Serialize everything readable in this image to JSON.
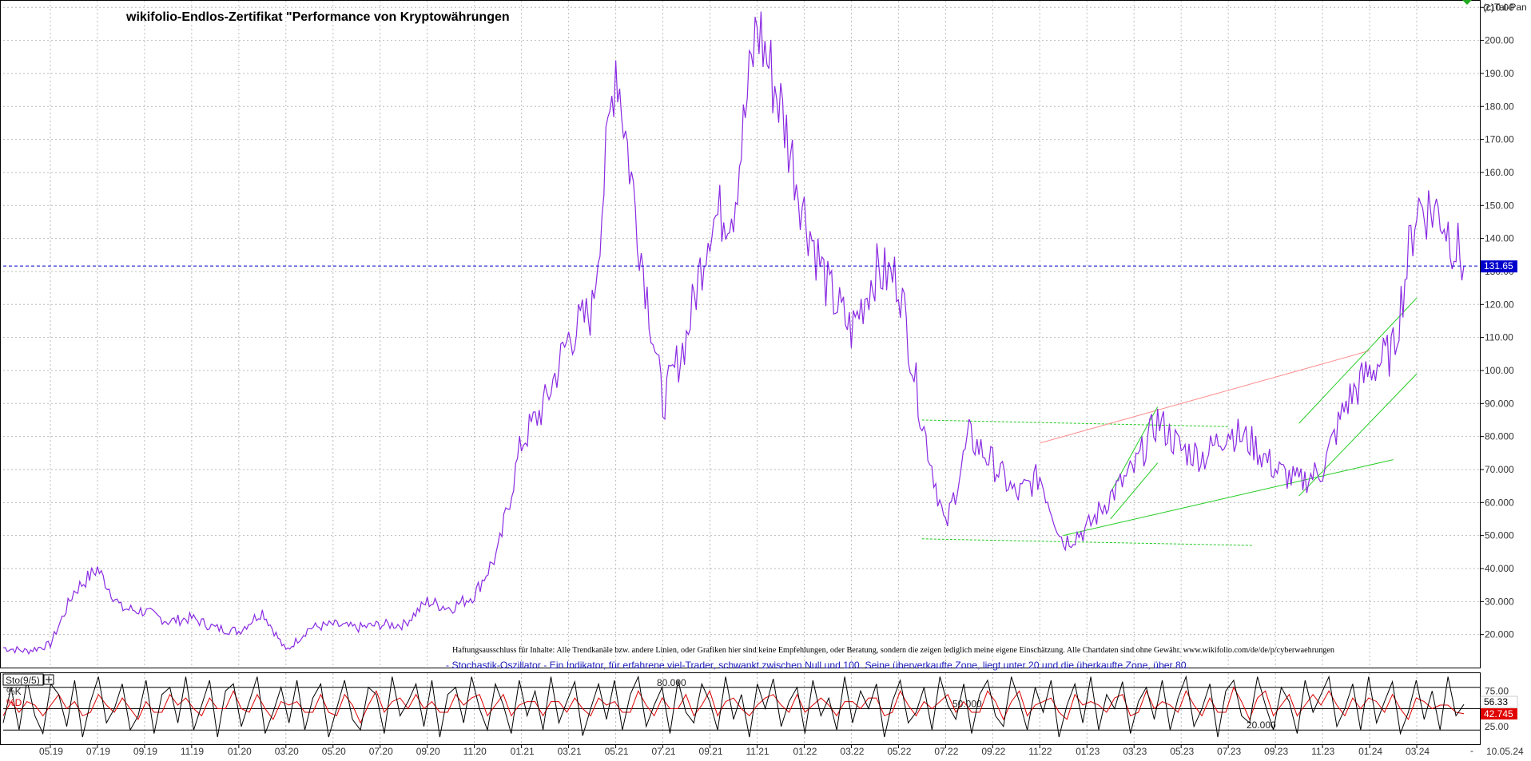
{
  "header": {
    "title": "wikifolio-Endlos-Zertifikat \"Performance von Kryptowährungen",
    "copyright": "(c)Tai-Pan"
  },
  "disclaimer": "Haftungsausschluss für Inhalte: Alle Trendkanäle bzw. andere Linien, oder Grafiken hier sind keine Empfehlungen, oder Beratung, sondern die zeigen lediglich meine eigene Einschätzung. Alle Chartdaten sind ohne Gewähr. www.wikifolio.com/de/de/p/cyberwaehrungen",
  "oscillator_description": "- Stochastik-Oszillator - Ein Indikator, für erfahrene viel-Trader, schwankt zwischen Null und 100. Seine überverkaufte Zone, liegt unter 20 und die überkaufte Zone, über 80.",
  "colors": {
    "price": "#8a2be2",
    "current_line": "#0000cc",
    "trend_green": "#22cc22",
    "trend_red": "#ff9090",
    "k_line": "#000000",
    "d_line": "#dd0000",
    "grid": "#bbbbbb",
    "price_label_bg": "#0000cc",
    "d_label_bg": "#e00000"
  },
  "chart_data": [
    {
      "type": "line",
      "title": "wikifolio-Endlos-Zertifikat \"Performance von Kryptowährungen",
      "ylim": [
        10,
        212
      ],
      "y_ticks": [
        "20.000",
        "30.000",
        "40.000",
        "50.000",
        "60.000",
        "70.000",
        "80.000",
        "90.000",
        "100.00",
        "110.00",
        "120.00",
        "130.00",
        "140.00",
        "150.00",
        "160.00",
        "170.00",
        "180.00",
        "190.00",
        "200.00",
        "210.00"
      ],
      "y_tick_values": [
        20,
        30,
        40,
        50,
        60,
        70,
        80,
        90,
        100,
        110,
        120,
        130,
        140,
        150,
        160,
        170,
        180,
        190,
        200,
        210
      ],
      "x_ticks": [
        "05.19",
        "07.19",
        "09.19",
        "11.19",
        "01.20",
        "03.20",
        "05.20",
        "07.20",
        "09.20",
        "11.20",
        "01.21",
        "03.21",
        "05.21",
        "07.21",
        "09.21",
        "11.21",
        "01.22",
        "03.22",
        "05.22",
        "07.22",
        "09.22",
        "11.22",
        "01.23",
        "03.23",
        "05.23",
        "07.23",
        "09.23",
        "11.23",
        "01.24",
        "03.24"
      ],
      "x_last_label": "10.05.24",
      "current_value": 131.65,
      "current_label": "131.65",
      "grid": true,
      "series": [
        {
          "x": [
            "2019-03",
            "2019-04",
            "2019-05",
            "2019-06",
            "2019-07",
            "2019-08",
            "2019-09",
            "2019-10",
            "2019-11",
            "2019-12",
            "2020-01",
            "2020-02",
            "2020-03",
            "2020-04",
            "2020-05",
            "2020-06",
            "2020-07",
            "2020-08",
            "2020-09",
            "2020-10",
            "2020-11",
            "2020-12",
            "2021-01",
            "2021-02",
            "2021-03",
            "2021-04",
            "2021-05",
            "2021-06",
            "2021-07",
            "2021-08",
            "2021-09",
            "2021-10",
            "2021-11",
            "2021-12",
            "2022-01",
            "2022-02",
            "2022-03",
            "2022-04",
            "2022-05",
            "2022-06",
            "2022-07",
            "2022-08",
            "2022-09",
            "2022-10",
            "2022-11",
            "2022-12",
            "2023-01",
            "2023-02",
            "2023-03",
            "2023-04",
            "2023-05",
            "2023-06",
            "2023-07",
            "2023-08",
            "2023-09",
            "2023-10",
            "2023-11",
            "2023-12",
            "2024-01",
            "2024-02",
            "2024-03",
            "2024-04",
            "2024-05"
          ],
          "values": [
            16,
            15,
            17,
            33,
            40,
            28,
            27,
            24,
            25,
            22,
            21,
            27,
            15,
            22,
            23,
            22,
            23,
            23,
            30,
            28,
            32,
            45,
            78,
            90,
            110,
            118,
            195,
            140,
            90,
            110,
            145,
            150,
            205,
            180,
            148,
            125,
            112,
            130,
            128,
            85,
            52,
            80,
            72,
            62,
            68,
            48,
            52,
            62,
            70,
            85,
            76,
            74,
            82,
            78,
            70,
            66,
            70,
            90,
            100,
            106,
            150,
            148,
            132
          ]
        }
      ],
      "trend_lines": [
        {
          "name": "channel-top",
          "from": [
            "2022-06",
            85
          ],
          "to": [
            "2023-07",
            83
          ],
          "style": "dashed",
          "color": "green"
        },
        {
          "name": "channel-bottom",
          "from": [
            "2022-06",
            49
          ],
          "to": [
            "2023-08",
            47
          ],
          "style": "dashed",
          "color": "green"
        },
        {
          "name": "support",
          "from": [
            "2022-12",
            50
          ],
          "to": [
            "2024-02",
            73
          ],
          "style": "solid",
          "color": "green"
        },
        {
          "name": "resistance",
          "from": [
            "2022-11",
            78
          ],
          "to": [
            "2024-01",
            106
          ],
          "style": "solid",
          "color": "red"
        },
        {
          "name": "channel-2023-up",
          "from": [
            "2023-02",
            63
          ],
          "to": [
            "2023-04",
            89
          ],
          "style": "solid",
          "color": "green"
        },
        {
          "name": "channel-2023-low",
          "from": [
            "2023-02",
            55
          ],
          "to": [
            "2023-04",
            72
          ],
          "style": "solid",
          "color": "green"
        },
        {
          "name": "channel-2024-up",
          "from": [
            "2023-10",
            84
          ],
          "to": [
            "2024-03",
            122
          ],
          "style": "solid",
          "color": "green"
        },
        {
          "name": "channel-2024-low",
          "from": [
            "2023-10",
            62
          ],
          "to": [
            "2024-03",
            99
          ],
          "style": "solid",
          "color": "green"
        }
      ]
    },
    {
      "type": "line",
      "title": "Sto(9/5)",
      "ylim": [
        0,
        100
      ],
      "y_ticks": [
        "75.00",
        "25.00"
      ],
      "y_tick_values": [
        75,
        25
      ],
      "levels": [
        {
          "value": 80,
          "label": "80.000"
        },
        {
          "value": 50,
          "label": "50.000"
        },
        {
          "value": 20,
          "label": "20.000"
        }
      ],
      "k_label": "%K",
      "d_label": "%D",
      "k_value": 56.33,
      "k_value_label": "56.33",
      "d_value": 42.745,
      "d_value_label": "42.745",
      "series": [
        {
          "name": "%K",
          "values": [
            30,
            80,
            20,
            90,
            40,
            15,
            85,
            70,
            25,
            90,
            10,
            60,
            95,
            30,
            50,
            85,
            20,
            40,
            90,
            15,
            70,
            80,
            30,
            95,
            20,
            55,
            90,
            10,
            75,
            85,
            25,
            60,
            95,
            15,
            45,
            80,
            30,
            90,
            20,
            65,
            85,
            10,
            50,
            90,
            35,
            20,
            80,
            70,
            15,
            95,
            40,
            60,
            85,
            25,
            90,
            10,
            70,
            80,
            30,
            95,
            50,
            20,
            85,
            55,
            15,
            90,
            40,
            75,
            20,
            95,
            30,
            60,
            88,
            12,
            50,
            85,
            35,
            90,
            20,
            70,
            95,
            25,
            55,
            80,
            15,
            90,
            45,
            30,
            85,
            60,
            20,
            95,
            35,
            70,
            10,
            85,
            50,
            92,
            25,
            60,
            80,
            15,
            90,
            40,
            65,
            20,
            95,
            30,
            75,
            50,
            85,
            10,
            60,
            90,
            30,
            45,
            80,
            20,
            95,
            55,
            35,
            85,
            15,
            70,
            90,
            40,
            25,
            95,
            60,
            20,
            80,
            45,
            90,
            10,
            55,
            85,
            30,
            95,
            20,
            70,
            50,
            88,
            15,
            60,
            80,
            35,
            90,
            20,
            65,
            95,
            25,
            50,
            85,
            10,
            75,
            90,
            40,
            30,
            95,
            55,
            20,
            80,
            60,
            15,
            90,
            45,
            70,
            95,
            25,
            50,
            85,
            20,
            96,
            30,
            60,
            88,
            15,
            45,
            90,
            35,
            75,
            20,
            95,
            40,
            56
          ]
        },
        {
          "name": "%D",
          "values": [
            40,
            60,
            45,
            60,
            55,
            40,
            55,
            70,
            50,
            60,
            40,
            45,
            70,
            55,
            45,
            65,
            50,
            35,
            60,
            45,
            45,
            70,
            55,
            65,
            50,
            40,
            65,
            50,
            50,
            75,
            50,
            45,
            70,
            50,
            35,
            60,
            55,
            60,
            45,
            45,
            70,
            45,
            40,
            70,
            55,
            30,
            55,
            75,
            45,
            60,
            65,
            50,
            70,
            50,
            60,
            45,
            45,
            70,
            55,
            65,
            70,
            40,
            55,
            70,
            40,
            55,
            60,
            60,
            40,
            60,
            60,
            45,
            65,
            50,
            40,
            65,
            55,
            60,
            45,
            45,
            75,
            55,
            40,
            65,
            50,
            50,
            70,
            40,
            55,
            75,
            40,
            60,
            65,
            50,
            40,
            55,
            65,
            70,
            55,
            45,
            70,
            45,
            55,
            65,
            55,
            40,
            60,
            60,
            50,
            65,
            65,
            40,
            45,
            75,
            55,
            40,
            60,
            50,
            60,
            70,
            45,
            60,
            45,
            45,
            75,
            60,
            35,
            60,
            75,
            40,
            55,
            60,
            65,
            45,
            35,
            70,
            55,
            60,
            55,
            45,
            65,
            70,
            40,
            45,
            75,
            50,
            60,
            55,
            45,
            75,
            55,
            40,
            65,
            45,
            45,
            80,
            60,
            35,
            65,
            75,
            40,
            55,
            70,
            40,
            55,
            70,
            55,
            75,
            55,
            40,
            65,
            50,
            65,
            60,
            45,
            70,
            50,
            35,
            65,
            60,
            50,
            55,
            55,
            45,
            43
          ]
        }
      ]
    }
  ]
}
